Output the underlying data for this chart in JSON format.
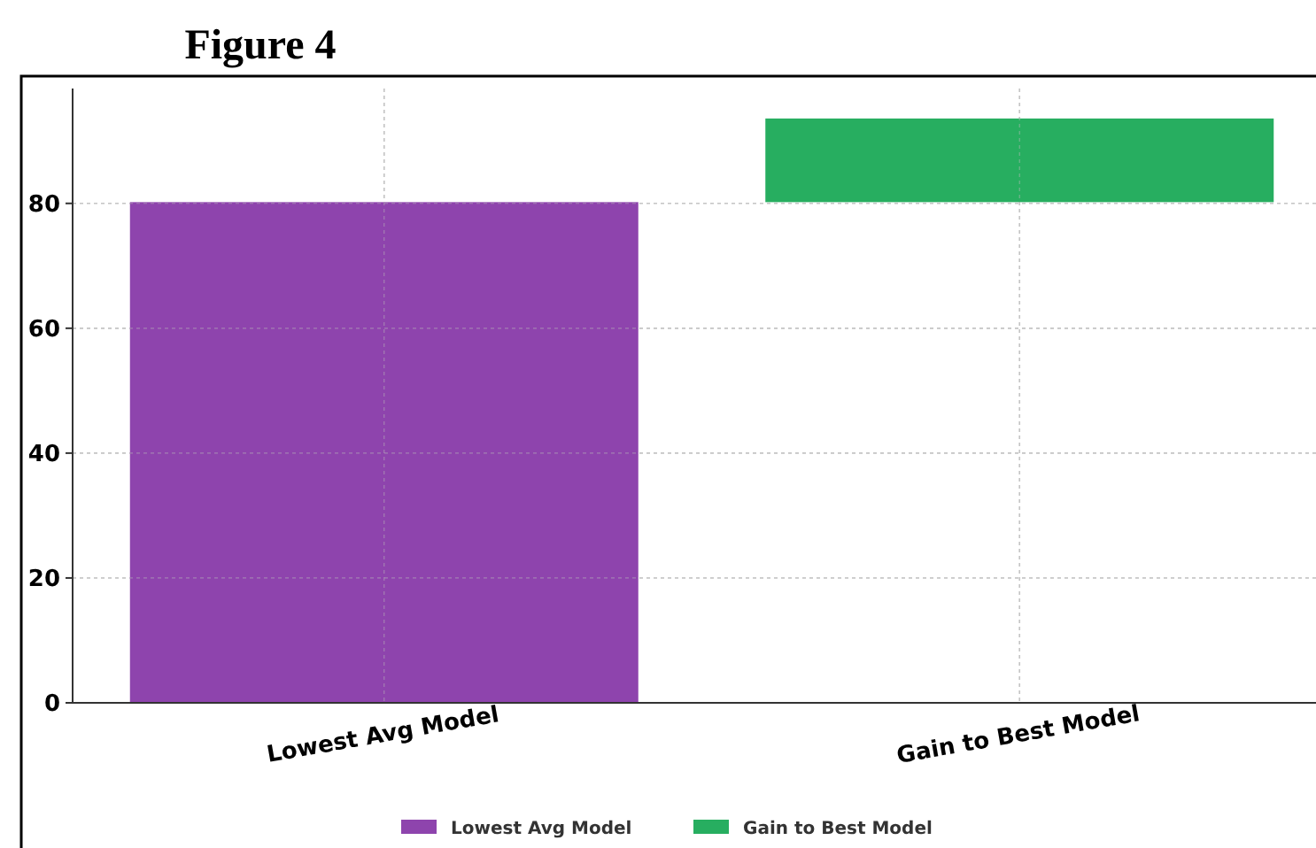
{
  "chart_data": {
    "type": "bar",
    "title": "Figure 4",
    "categories": [
      "Lowest Avg Model",
      "Gain to Best Model"
    ],
    "series": [
      {
        "name": "Lowest Avg Model",
        "color": "#8e44ad",
        "values": [
          80.2,
          null
        ]
      },
      {
        "name": "Gain to Best Model",
        "color": "#27ae60",
        "values": [
          null,
          13.4
        ],
        "base": [
          null,
          80.2
        ]
      }
    ],
    "ylim": [
      0,
      98.4
    ],
    "yticks": [
      0,
      20,
      40,
      60,
      80
    ],
    "grid": true,
    "legend": "bottom"
  }
}
